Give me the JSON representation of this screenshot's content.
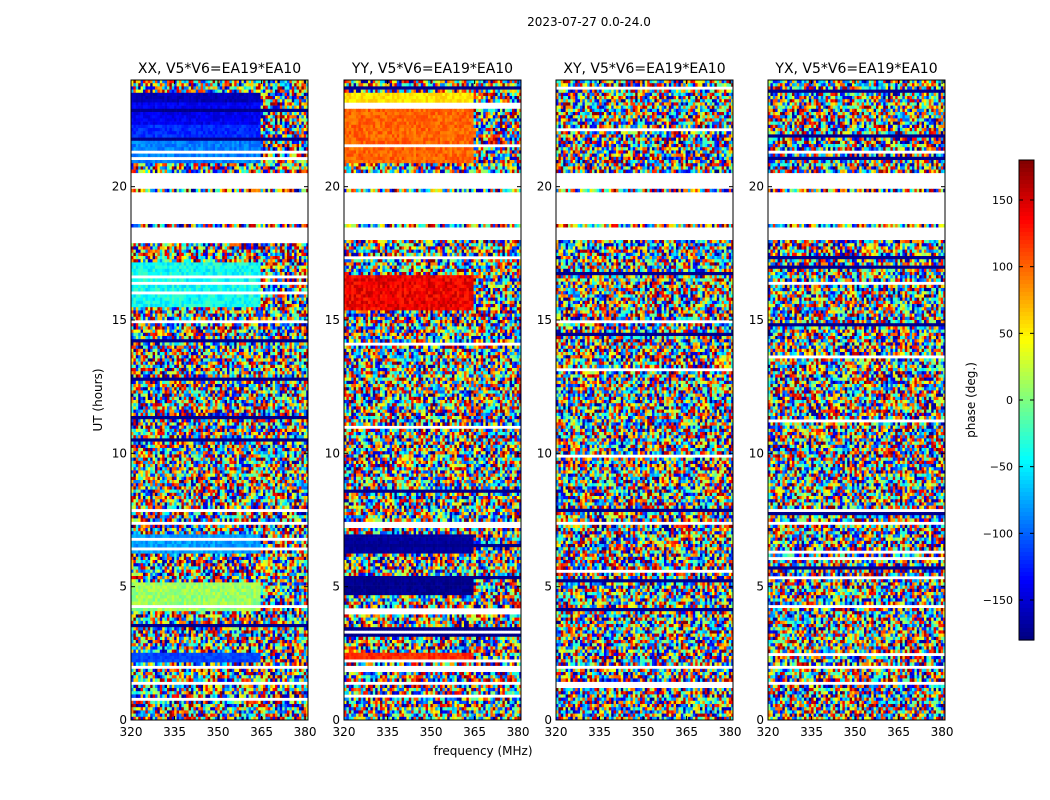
{
  "figure": {
    "suptitle": "2023-07-27 0.0-24.0",
    "xlabel": "frequency (MHz)",
    "ylabel": "UT (hours)"
  },
  "colorbar": {
    "label": "phase (deg.)",
    "range": [
      -180,
      180
    ],
    "ticks": [
      150,
      100,
      50,
      0,
      -50,
      -100,
      -150
    ],
    "tick_labels": [
      "150",
      "100",
      "50",
      "0",
      "−50",
      "−100",
      "−150"
    ],
    "colormap": [
      "#00007f",
      "#0000ff",
      "#007fff",
      "#00ffff",
      "#7fff7f",
      "#ffff00",
      "#ff7f00",
      "#ff0000",
      "#7f0000"
    ]
  },
  "chart_data": {
    "type": "heatmap",
    "xlim": [
      320,
      381
    ],
    "ylim": [
      0,
      24
    ],
    "xticks": [
      320,
      335,
      350,
      365,
      380
    ],
    "xtick_labels": [
      "320",
      "335",
      "350",
      "365",
      "380"
    ],
    "yticks": [
      0,
      5,
      10,
      15,
      20
    ],
    "ytick_labels": [
      "0",
      "5",
      "10",
      "15",
      "20"
    ],
    "panels": [
      {
        "title": "XX, V5*V6=EA19*EA10"
      },
      {
        "title": "YY, V5*V6=EA19*EA10"
      },
      {
        "title": "XY, V5*V6=EA19*EA10"
      },
      {
        "title": "YX, V5*V6=EA19*EA10"
      }
    ]
  }
}
